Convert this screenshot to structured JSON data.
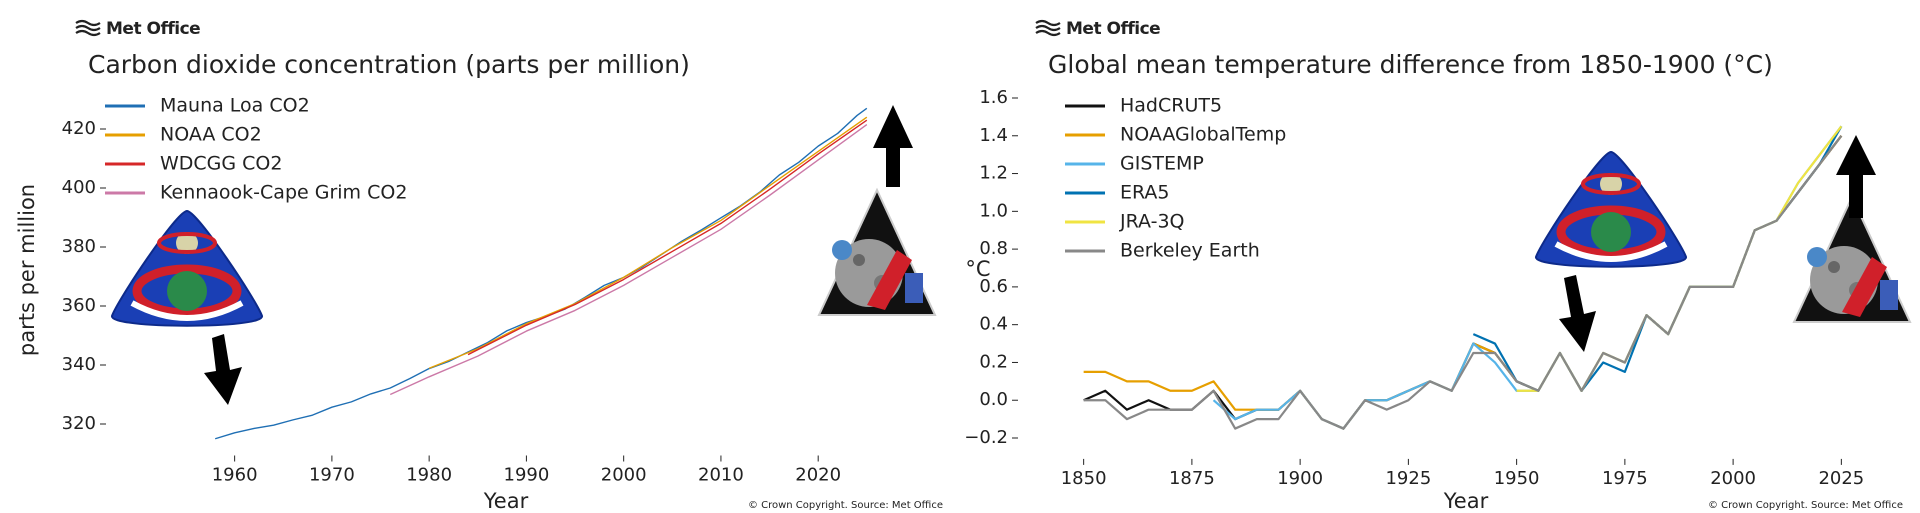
{
  "chart_data": [
    {
      "type": "line",
      "brand": "Met Office",
      "title": "Carbon dioxide concentration (parts per million)",
      "xlabel": "Year",
      "ylabel": "parts per million",
      "credit": "© Crown Copyright. Source: Met Office",
      "xlim": [
        1955,
        2028
      ],
      "xticks": [
        1960,
        1970,
        1980,
        1990,
        2000,
        2010,
        2020
      ],
      "ylim": [
        310,
        432
      ],
      "yticks": [
        320,
        340,
        360,
        380,
        400,
        420
      ],
      "grid": false,
      "legend": "upper left",
      "series": [
        {
          "name": "Mauna Loa CO2",
          "color": "#1f6fb4",
          "x": [
            1958,
            1960,
            1962,
            1964,
            1966,
            1968,
            1970,
            1972,
            1974,
            1976,
            1978,
            1980,
            1982,
            1984,
            1986,
            1988,
            1990,
            1992,
            1994,
            1996,
            1998,
            2000,
            2002,
            2004,
            2006,
            2008,
            2010,
            2012,
            2014,
            2016,
            2018,
            2020,
            2022,
            2024,
            2025
          ],
          "values": [
            315,
            317,
            318.5,
            319.6,
            321.4,
            323,
            325.7,
            327.5,
            330.2,
            332.2,
            335.4,
            338.8,
            341.2,
            344.4,
            347.6,
            351.6,
            354.4,
            356.5,
            359,
            362.9,
            367,
            369.7,
            373.4,
            377.7,
            382,
            385.8,
            389.9,
            393.9,
            398.6,
            404.4,
            408.7,
            414.2,
            418.5,
            424.6,
            427
          ]
        },
        {
          "name": "NOAA CO2",
          "color": "#e69f00",
          "x": [
            1980,
            1985,
            1990,
            1995,
            2000,
            2005,
            2010,
            2015,
            2020,
            2025
          ],
          "values": [
            338.9,
            345.5,
            354,
            360.8,
            369.7,
            379.8,
            389,
            400.8,
            412.4,
            424
          ]
        },
        {
          "name": "WDCGG CO2",
          "color": "#d62728",
          "x": [
            1984,
            1990,
            1995,
            2000,
            2005,
            2010,
            2015,
            2020,
            2025
          ],
          "values": [
            343.5,
            353.5,
            360.5,
            369,
            378.5,
            388,
            399.5,
            411.5,
            423
          ]
        },
        {
          "name": "Kennaook-Cape Grim CO2",
          "color": "#cc79a7",
          "x": [
            1976,
            1980,
            1985,
            1990,
            1995,
            2000,
            2005,
            2010,
            2015,
            2020,
            2025
          ],
          "values": [
            330,
            336,
            343,
            351.5,
            358.5,
            367,
            376.5,
            386,
            397.5,
            409.5,
            421.5
          ]
        }
      ]
    },
    {
      "type": "line",
      "brand": "Met Office",
      "title": "Global mean temperature difference from 1850-1900 (°C)",
      "xlabel": "Year",
      "ylabel": "°C",
      "credit": "© Crown Copyright. Source: Met Office",
      "xlim": [
        1845,
        2030
      ],
      "xticks": [
        1850,
        1875,
        1900,
        1925,
        1950,
        1975,
        2000,
        2025
      ],
      "ylim": [
        -0.3,
        1.7
      ],
      "yticks": [
        {
          "value": -0.2,
          "label": "−0.2"
        },
        {
          "value": 0,
          "label": "0.0"
        },
        0.2,
        0.4,
        0.6,
        0.8,
        {
          "value": 1,
          "label": "1.0"
        },
        1.2,
        1.4,
        1.6
      ],
      "grid": false,
      "legend": "upper left",
      "series": [
        {
          "name": "HadCRUT5",
          "color": "#111111",
          "x": [
            1850,
            1855,
            1860,
            1865,
            1870,
            1875,
            1880,
            1885,
            1890,
            1895,
            1900,
            1905,
            1910,
            1915,
            1920,
            1925,
            1930,
            1935,
            1940,
            1945,
            1950,
            1955,
            1960,
            1965,
            1970,
            1975,
            1980,
            1985,
            1990,
            1995,
            2000,
            2005,
            2010,
            2015,
            2020,
            2025
          ],
          "values": [
            0.0,
            0.05,
            -0.05,
            0.0,
            -0.05,
            -0.05,
            0.05,
            -0.1,
            -0.05,
            -0.05,
            0.05,
            -0.1,
            -0.15,
            0.0,
            0.0,
            0.05,
            0.1,
            0.05,
            0.3,
            0.25,
            0.1,
            0.05,
            0.25,
            0.05,
            0.25,
            0.2,
            0.45,
            0.35,
            0.6,
            0.6,
            0.6,
            0.9,
            0.95,
            1.1,
            1.25,
            1.4
          ]
        },
        {
          "name": "NOAAGlobalTemp",
          "color": "#e69f00",
          "x": [
            1850,
            1855,
            1860,
            1865,
            1870,
            1875,
            1880,
            1885,
            1890,
            1895,
            1900,
            1905,
            1910,
            1915,
            1920,
            1925,
            1930,
            1935,
            1940,
            1945,
            1950,
            1955,
            1960,
            1965,
            1970,
            1975,
            1980,
            1985,
            1990,
            1995,
            2000,
            2005,
            2010,
            2015,
            2020,
            2025
          ],
          "values": [
            0.15,
            0.15,
            0.1,
            0.1,
            0.05,
            0.05,
            0.1,
            -0.05,
            -0.05,
            -0.05,
            0.05,
            -0.1,
            -0.15,
            0.0,
            0.0,
            0.05,
            0.1,
            0.05,
            0.3,
            0.25,
            0.1,
            0.05,
            0.25,
            0.05,
            0.25,
            0.2,
            0.45,
            0.35,
            0.6,
            0.6,
            0.6,
            0.9,
            0.95,
            1.1,
            1.25,
            1.4
          ]
        },
        {
          "name": "GISTEMP",
          "color": "#56b4e9",
          "x": [
            1880,
            1885,
            1890,
            1895,
            1900,
            1905,
            1910,
            1915,
            1920,
            1925,
            1930,
            1935,
            1940,
            1945,
            1950,
            1955,
            1960,
            1965,
            1970,
            1975,
            1980,
            1985,
            1990,
            1995,
            2000,
            2005,
            2010,
            2015,
            2020,
            2025
          ],
          "values": [
            0.0,
            -0.1,
            -0.05,
            -0.05,
            0.05,
            -0.1,
            -0.15,
            0.0,
            0.0,
            0.05,
            0.1,
            0.05,
            0.3,
            0.2,
            0.05,
            0.05,
            0.25,
            0.05,
            0.25,
            0.2,
            0.45,
            0.35,
            0.6,
            0.6,
            0.6,
            0.9,
            0.95,
            1.15,
            1.3,
            1.45
          ]
        },
        {
          "name": "ERA5",
          "color": "#0072b2",
          "x": [
            1940,
            1945,
            1950,
            1955,
            1960,
            1965,
            1970,
            1975,
            1980,
            1985,
            1990,
            1995,
            2000,
            2005,
            2010,
            2015,
            2020,
            2025
          ],
          "values": [
            0.35,
            0.3,
            0.1,
            0.05,
            0.25,
            0.05,
            0.2,
            0.15,
            0.45,
            0.35,
            0.6,
            0.6,
            0.6,
            0.9,
            0.95,
            1.1,
            1.25,
            1.45
          ]
        },
        {
          "name": "JRA-3Q",
          "color": "#f0e442",
          "x": [
            1950,
            1955,
            1960,
            1965,
            1970,
            1975,
            1980,
            1985,
            1990,
            1995,
            2000,
            2005,
            2010,
            2015,
            2020,
            2025
          ],
          "values": [
            0.05,
            0.05,
            0.25,
            0.05,
            0.25,
            0.2,
            0.45,
            0.35,
            0.6,
            0.6,
            0.6,
            0.9,
            0.95,
            1.15,
            1.3,
            1.45
          ]
        },
        {
          "name": "Berkeley Earth",
          "color": "#888888",
          "x": [
            1850,
            1855,
            1860,
            1865,
            1870,
            1875,
            1880,
            1885,
            1890,
            1895,
            1900,
            1905,
            1910,
            1915,
            1920,
            1925,
            1930,
            1935,
            1940,
            1945,
            1950,
            1955,
            1960,
            1965,
            1970,
            1975,
            1980,
            1985,
            1990,
            1995,
            2000,
            2005,
            2010,
            2015,
            2020,
            2025
          ],
          "values": [
            0.0,
            0.0,
            -0.1,
            -0.05,
            -0.05,
            -0.05,
            0.05,
            -0.15,
            -0.1,
            -0.1,
            0.05,
            -0.1,
            -0.15,
            0.0,
            -0.05,
            0.0,
            0.1,
            0.05,
            0.25,
            0.25,
            0.1,
            0.05,
            0.25,
            0.05,
            0.25,
            0.2,
            0.45,
            0.35,
            0.6,
            0.6,
            0.6,
            0.9,
            0.95,
            1.1,
            1.25,
            1.4
          ]
        }
      ]
    }
  ]
}
